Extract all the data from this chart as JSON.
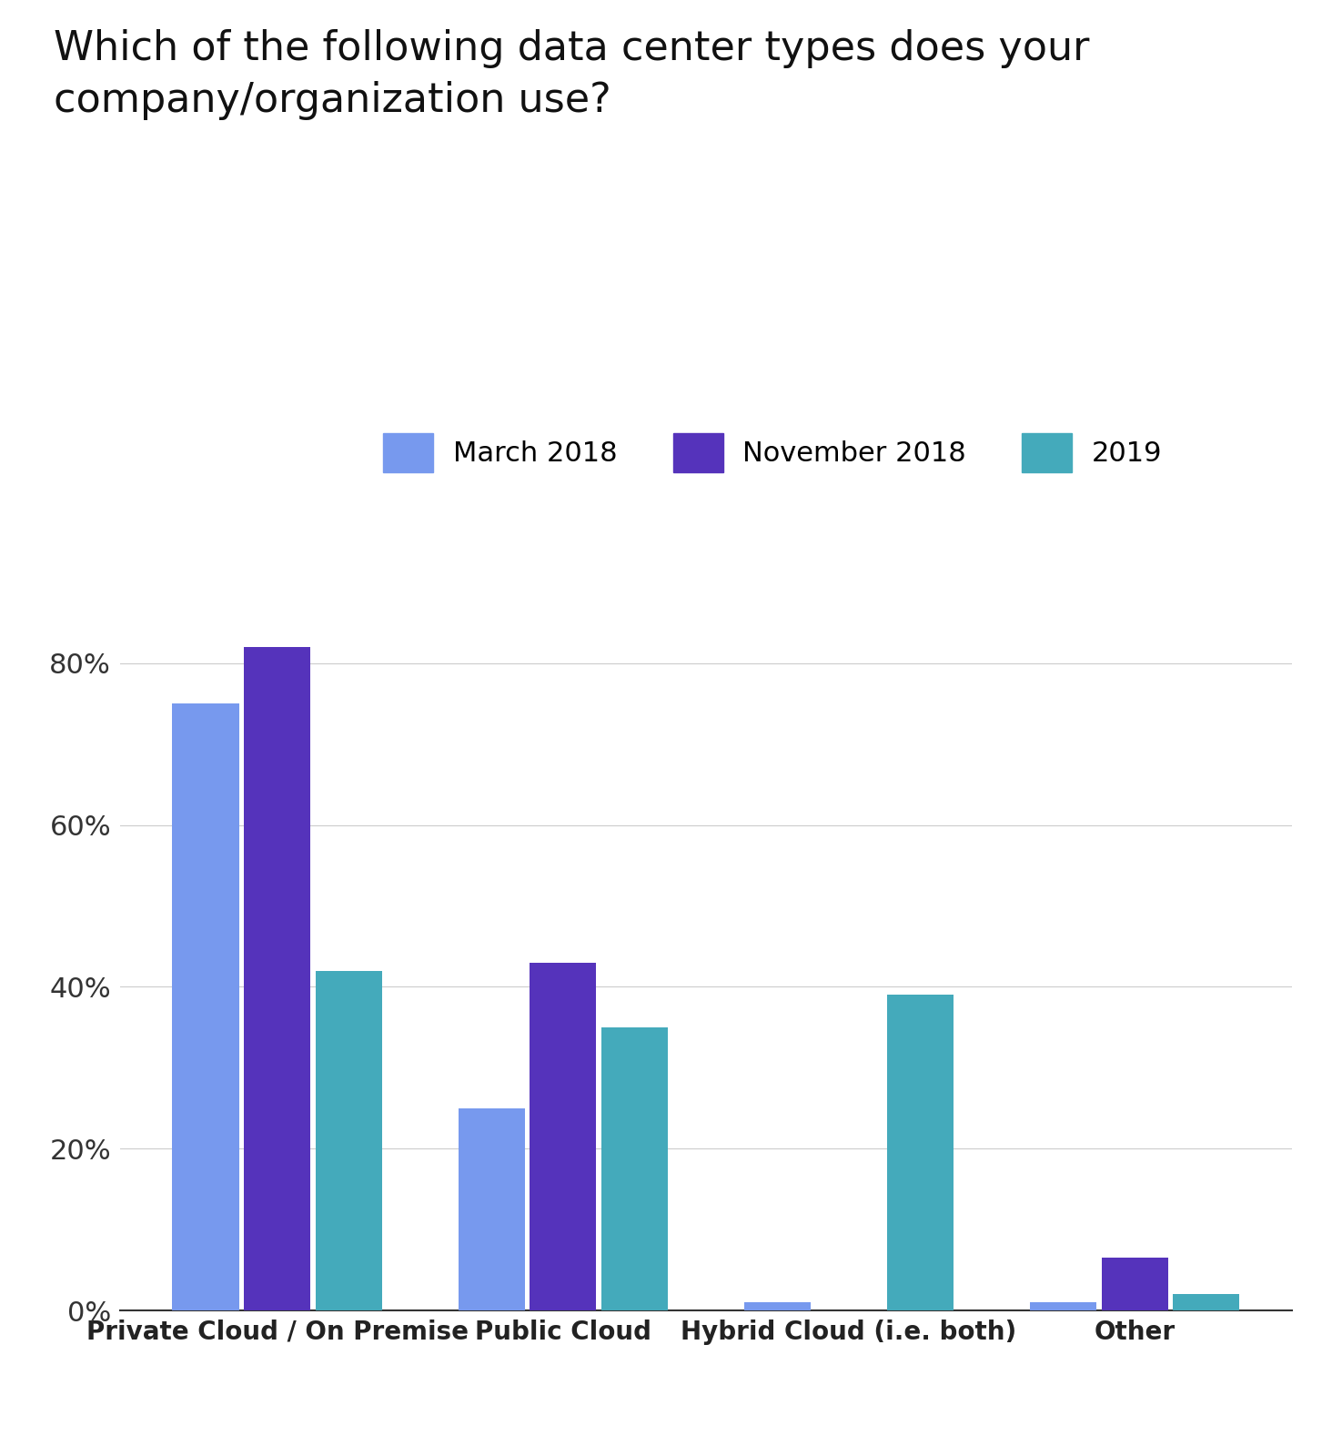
{
  "title": "Which of the following data center types does your\ncompany/organization use?",
  "categories": [
    "Private Cloud / On Premise",
    "Public Cloud",
    "Hybrid Cloud (i.e. both)",
    "Other"
  ],
  "series": {
    "March 2018": [
      0.75,
      0.25,
      0.01,
      0.01
    ],
    "November 2018": [
      0.82,
      0.43,
      0.0,
      0.065
    ],
    "2019": [
      0.42,
      0.35,
      0.39,
      0.02
    ]
  },
  "colors": {
    "March 2018": "#7799EE",
    "November 2018": "#5533BB",
    "2019": "#44AABB"
  },
  "ylim": [
    0,
    0.9
  ],
  "yticks": [
    0.0,
    0.2,
    0.4,
    0.6,
    0.8
  ],
  "ytick_labels": [
    "0%",
    "20%",
    "40%",
    "60%",
    "80%"
  ],
  "legend_labels": [
    "March 2018",
    "November 2018",
    "2019"
  ],
  "background_color": "#ffffff",
  "title_fontsize": 32,
  "tick_fontsize": 22,
  "legend_fontsize": 22,
  "xtick_fontsize": 20
}
